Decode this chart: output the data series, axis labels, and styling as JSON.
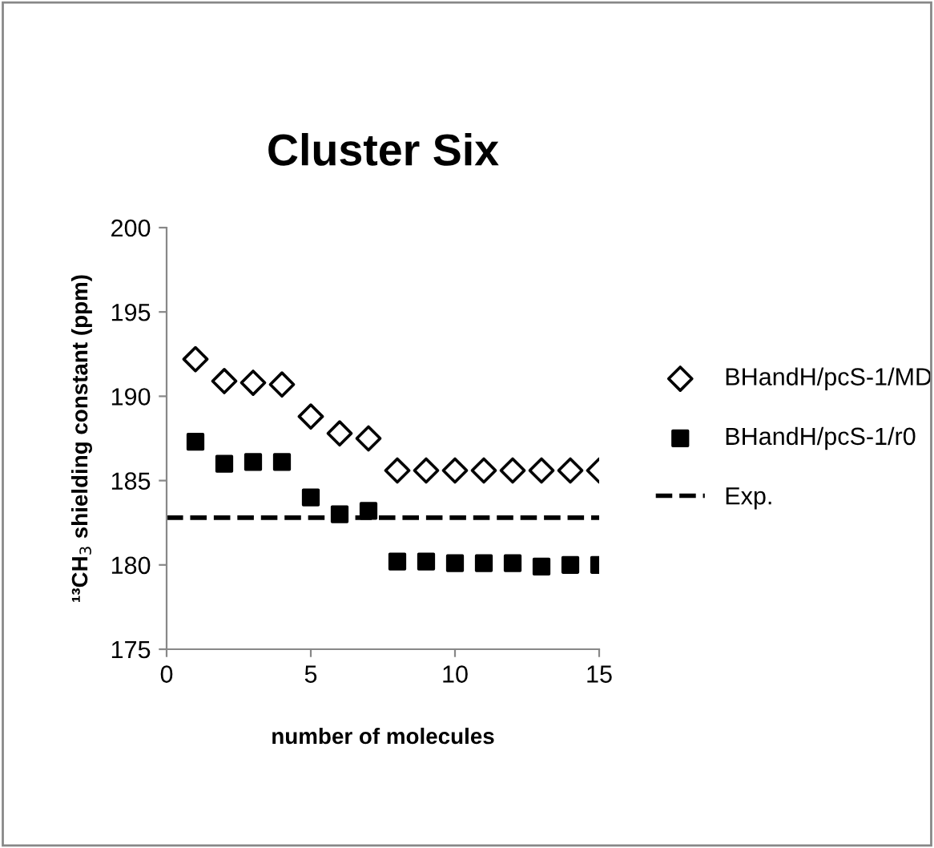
{
  "chart_data": {
    "type": "scatter",
    "title": "Cluster Six",
    "xlabel": "number of molecules",
    "ylabel": "¹³CH$_{3}$ shielding constant (ppm)",
    "x": [
      1,
      2,
      3,
      4,
      5,
      6,
      7,
      8,
      9,
      10,
      11,
      12,
      13,
      14,
      15
    ],
    "xlim": [
      0,
      15
    ],
    "xticks": [
      0,
      5,
      10,
      15
    ],
    "ylim": [
      175,
      200
    ],
    "yticks": [
      175,
      180,
      185,
      190,
      195,
      200
    ],
    "grid": false,
    "legend": "right",
    "series": [
      {
        "name": "BHandH/pcS-1/MD",
        "color": "#000000",
        "marker": "diamond",
        "values": [
          192.2,
          190.9,
          190.8,
          190.7,
          188.8,
          187.8,
          187.5,
          185.6,
          185.6,
          185.6,
          185.6,
          185.6,
          185.6,
          185.6,
          185.6
        ]
      },
      {
        "name": "BHandH/pcS-1/r0",
        "color": "#000000",
        "marker": "square",
        "values": [
          187.3,
          186.0,
          186.1,
          186.1,
          184.0,
          183.0,
          183.2,
          180.2,
          180.2,
          180.1,
          180.1,
          180.1,
          179.9,
          180.0,
          180.0
        ]
      },
      {
        "name": "Exp.",
        "type": "line",
        "color": "#000000",
        "marker": "none",
        "line_style": "dashed",
        "x": [
          0,
          15
        ],
        "values": [
          182.8,
          182.8
        ]
      }
    ]
  }
}
